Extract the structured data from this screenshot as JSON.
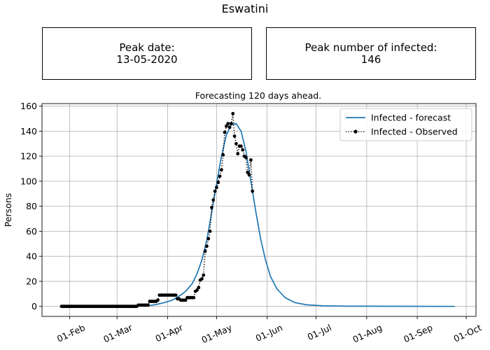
{
  "figure": {
    "title": "Eswatini",
    "peak_date_label": "Peak date:",
    "peak_date_value": "13-05-2020",
    "peak_infected_label": "Peak number of infected:",
    "peak_infected_value": "146"
  },
  "chart_data": {
    "type": "line",
    "title": "Forecasting 120 days ahead.",
    "xlabel": "",
    "ylabel": "Persons",
    "x_axis": "date",
    "xlim": [
      "2020-01-15",
      "2020-10-07"
    ],
    "ylim": [
      -8,
      162
    ],
    "x_ticks": [
      {
        "date": "2020-02-01",
        "label": "01-Feb"
      },
      {
        "date": "2020-03-01",
        "label": "01-Mar"
      },
      {
        "date": "2020-04-01",
        "label": "01-Apr"
      },
      {
        "date": "2020-05-01",
        "label": "01-May"
      },
      {
        "date": "2020-06-01",
        "label": "01-Jun"
      },
      {
        "date": "2020-07-01",
        "label": "01-Jul"
      },
      {
        "date": "2020-08-01",
        "label": "01-Aug"
      },
      {
        "date": "2020-09-01",
        "label": "01-Sep"
      },
      {
        "date": "2020-10-01",
        "label": "01-Oct"
      }
    ],
    "y_ticks": [
      0,
      20,
      40,
      60,
      80,
      100,
      120,
      140,
      160
    ],
    "grid": true,
    "legend_position": "top-right",
    "series": [
      {
        "name": "Infected - forecast",
        "style": "solid",
        "color": "#1f77b4",
        "points": [
          [
            "2020-03-10",
            0
          ],
          [
            "2020-03-20",
            0.5
          ],
          [
            "2020-03-25",
            1.5
          ],
          [
            "2020-03-30",
            3
          ],
          [
            "2020-04-04",
            5
          ],
          [
            "2020-04-09",
            9
          ],
          [
            "2020-04-12",
            12
          ],
          [
            "2020-04-16",
            18
          ],
          [
            "2020-04-19",
            26
          ],
          [
            "2020-04-22",
            37
          ],
          [
            "2020-04-25",
            53
          ],
          [
            "2020-04-28",
            75
          ],
          [
            "2020-05-01",
            98
          ],
          [
            "2020-05-04",
            120
          ],
          [
            "2020-05-07",
            137
          ],
          [
            "2020-05-10",
            145
          ],
          [
            "2020-05-13",
            146
          ],
          [
            "2020-05-16",
            140
          ],
          [
            "2020-05-19",
            124
          ],
          [
            "2020-05-22",
            100
          ],
          [
            "2020-05-25",
            76
          ],
          [
            "2020-05-28",
            54
          ],
          [
            "2020-05-31",
            37
          ],
          [
            "2020-06-03",
            24
          ],
          [
            "2020-06-07",
            14
          ],
          [
            "2020-06-12",
            7
          ],
          [
            "2020-06-18",
            3
          ],
          [
            "2020-06-25",
            1.3
          ],
          [
            "2020-07-05",
            0.5
          ],
          [
            "2020-07-20",
            0.2
          ],
          [
            "2020-08-15",
            0.1
          ],
          [
            "2020-09-24",
            0
          ]
        ]
      },
      {
        "name": "Infected - Observed",
        "style": "dotted",
        "marker": "circle",
        "color": "#000000",
        "points": [
          [
            "2020-01-27",
            0
          ],
          [
            "2020-01-28",
            0
          ],
          [
            "2020-01-29",
            0
          ],
          [
            "2020-01-30",
            0
          ],
          [
            "2020-01-31",
            0
          ],
          [
            "2020-02-01",
            0
          ],
          [
            "2020-02-02",
            0
          ],
          [
            "2020-02-03",
            0
          ],
          [
            "2020-02-04",
            0
          ],
          [
            "2020-02-05",
            0
          ],
          [
            "2020-02-06",
            0
          ],
          [
            "2020-02-07",
            0
          ],
          [
            "2020-02-08",
            0
          ],
          [
            "2020-02-09",
            0
          ],
          [
            "2020-02-10",
            0
          ],
          [
            "2020-02-11",
            0
          ],
          [
            "2020-02-12",
            0
          ],
          [
            "2020-02-13",
            0
          ],
          [
            "2020-02-14",
            0
          ],
          [
            "2020-02-15",
            0
          ],
          [
            "2020-02-16",
            0
          ],
          [
            "2020-02-17",
            0
          ],
          [
            "2020-02-18",
            0
          ],
          [
            "2020-02-19",
            0
          ],
          [
            "2020-02-20",
            0
          ],
          [
            "2020-02-21",
            0
          ],
          [
            "2020-02-22",
            0
          ],
          [
            "2020-02-23",
            0
          ],
          [
            "2020-02-24",
            0
          ],
          [
            "2020-02-25",
            0
          ],
          [
            "2020-02-26",
            0
          ],
          [
            "2020-02-27",
            0
          ],
          [
            "2020-02-28",
            0
          ],
          [
            "2020-02-29",
            0
          ],
          [
            "2020-03-01",
            0
          ],
          [
            "2020-03-02",
            0
          ],
          [
            "2020-03-03",
            0
          ],
          [
            "2020-03-04",
            0
          ],
          [
            "2020-03-05",
            0
          ],
          [
            "2020-03-06",
            0
          ],
          [
            "2020-03-07",
            0
          ],
          [
            "2020-03-08",
            0
          ],
          [
            "2020-03-09",
            0
          ],
          [
            "2020-03-10",
            0
          ],
          [
            "2020-03-11",
            0
          ],
          [
            "2020-03-12",
            0
          ],
          [
            "2020-03-13",
            0
          ],
          [
            "2020-03-14",
            1
          ],
          [
            "2020-03-15",
            1
          ],
          [
            "2020-03-16",
            1
          ],
          [
            "2020-03-17",
            1
          ],
          [
            "2020-03-18",
            1
          ],
          [
            "2020-03-19",
            1
          ],
          [
            "2020-03-20",
            1
          ],
          [
            "2020-03-21",
            4
          ],
          [
            "2020-03-22",
            4
          ],
          [
            "2020-03-23",
            4
          ],
          [
            "2020-03-24",
            4
          ],
          [
            "2020-03-25",
            4
          ],
          [
            "2020-03-26",
            5
          ],
          [
            "2020-03-27",
            9
          ],
          [
            "2020-03-28",
            9
          ],
          [
            "2020-03-29",
            9
          ],
          [
            "2020-03-30",
            9
          ],
          [
            "2020-03-31",
            9
          ],
          [
            "2020-04-01",
            9
          ],
          [
            "2020-04-02",
            9
          ],
          [
            "2020-04-03",
            9
          ],
          [
            "2020-04-04",
            9
          ],
          [
            "2020-04-05",
            9
          ],
          [
            "2020-04-06",
            9
          ],
          [
            "2020-04-07",
            6
          ],
          [
            "2020-04-08",
            6
          ],
          [
            "2020-04-09",
            5
          ],
          [
            "2020-04-10",
            5
          ],
          [
            "2020-04-11",
            5
          ],
          [
            "2020-04-12",
            5
          ],
          [
            "2020-04-13",
            7
          ],
          [
            "2020-04-14",
            7
          ],
          [
            "2020-04-15",
            7
          ],
          [
            "2020-04-16",
            7
          ],
          [
            "2020-04-17",
            7
          ],
          [
            "2020-04-18",
            12
          ],
          [
            "2020-04-19",
            13
          ],
          [
            "2020-04-20",
            15
          ],
          [
            "2020-04-21",
            21
          ],
          [
            "2020-04-22",
            22
          ],
          [
            "2020-04-23",
            25
          ],
          [
            "2020-04-24",
            44
          ],
          [
            "2020-04-25",
            48
          ],
          [
            "2020-04-26",
            54
          ],
          [
            "2020-04-27",
            60
          ],
          [
            "2020-04-28",
            79
          ],
          [
            "2020-04-29",
            85
          ],
          [
            "2020-04-30",
            92
          ],
          [
            "2020-05-01",
            95
          ],
          [
            "2020-05-02",
            99
          ],
          [
            "2020-05-03",
            104
          ],
          [
            "2020-05-04",
            109
          ],
          [
            "2020-05-05",
            121
          ],
          [
            "2020-05-06",
            139
          ],
          [
            "2020-05-07",
            144
          ],
          [
            "2020-05-08",
            146
          ],
          [
            "2020-05-09",
            143
          ],
          [
            "2020-05-10",
            146
          ],
          [
            "2020-05-11",
            154
          ],
          [
            "2020-05-12",
            136
          ],
          [
            "2020-05-13",
            130
          ],
          [
            "2020-05-14",
            122
          ],
          [
            "2020-05-15",
            128
          ],
          [
            "2020-05-16",
            128
          ],
          [
            "2020-05-17",
            125
          ],
          [
            "2020-05-18",
            120
          ],
          [
            "2020-05-19",
            119
          ],
          [
            "2020-05-20",
            107
          ],
          [
            "2020-05-21",
            105
          ],
          [
            "2020-05-22",
            117
          ],
          [
            "2020-05-23",
            92
          ]
        ]
      }
    ]
  }
}
